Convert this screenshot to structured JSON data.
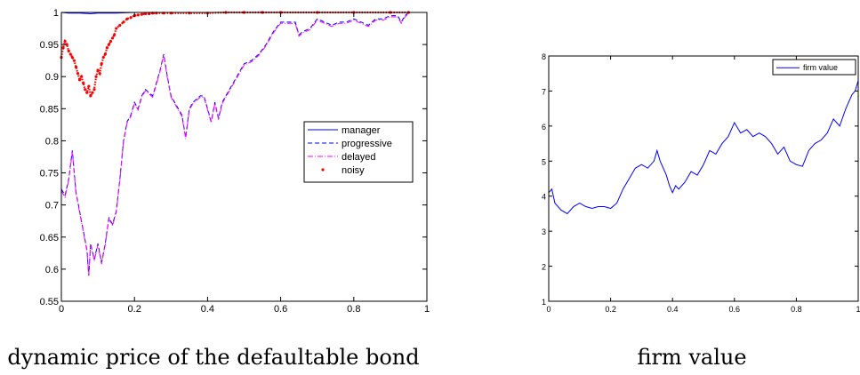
{
  "chart_data": [
    {
      "type": "line",
      "caption": "dynamic price of the defaultable bond",
      "xlim": [
        0,
        1
      ],
      "ylim": [
        0.55,
        1
      ],
      "xticks": [
        "0",
        "0.2",
        "0.4",
        "0.6",
        "0.8",
        "1"
      ],
      "yticks": [
        "0.55",
        "0.6",
        "0.65",
        "0.7",
        "0.75",
        "0.8",
        "0.85",
        "0.9",
        "0.95",
        "1"
      ],
      "legend_position": "right",
      "grid": false,
      "series": [
        {
          "name": "manager",
          "color": "#0000ff",
          "style": "solid",
          "x": [
            0,
            0.02,
            0.05,
            0.08,
            0.1,
            0.15,
            0.2,
            0.3,
            0.5,
            0.7,
            0.95
          ],
          "y": [
            1.0,
            0.999,
            0.999,
            0.998,
            0.999,
            0.999,
            1.0,
            1.0,
            1.0,
            1.0,
            1.0
          ]
        },
        {
          "name": "progressive",
          "color": "#0000ff",
          "style": "dashed",
          "x": [
            0,
            0.01,
            0.02,
            0.03,
            0.04,
            0.05,
            0.06,
            0.07,
            0.075,
            0.08,
            0.09,
            0.1,
            0.11,
            0.12,
            0.13,
            0.14,
            0.15,
            0.16,
            0.17,
            0.18,
            0.19,
            0.2,
            0.21,
            0.22,
            0.23,
            0.24,
            0.25,
            0.26,
            0.27,
            0.28,
            0.29,
            0.3,
            0.31,
            0.32,
            0.33,
            0.34,
            0.35,
            0.36,
            0.37,
            0.38,
            0.39,
            0.4,
            0.41,
            0.42,
            0.43,
            0.44,
            0.45,
            0.46,
            0.47,
            0.48,
            0.5,
            0.52,
            0.54,
            0.56,
            0.58,
            0.6,
            0.62,
            0.64,
            0.65,
            0.66,
            0.68,
            0.7,
            0.72,
            0.74,
            0.76,
            0.78,
            0.8,
            0.82,
            0.84,
            0.86,
            0.88,
            0.9,
            0.92,
            0.93,
            0.94,
            0.95
          ],
          "y": [
            0.725,
            0.715,
            0.74,
            0.785,
            0.72,
            0.69,
            0.66,
            0.63,
            0.59,
            0.64,
            0.615,
            0.64,
            0.61,
            0.64,
            0.68,
            0.67,
            0.69,
            0.74,
            0.8,
            0.83,
            0.84,
            0.86,
            0.85,
            0.87,
            0.88,
            0.875,
            0.87,
            0.89,
            0.91,
            0.935,
            0.9,
            0.87,
            0.86,
            0.85,
            0.84,
            0.805,
            0.85,
            0.86,
            0.865,
            0.87,
            0.87,
            0.85,
            0.83,
            0.86,
            0.835,
            0.86,
            0.87,
            0.88,
            0.89,
            0.9,
            0.92,
            0.925,
            0.935,
            0.95,
            0.97,
            0.985,
            0.985,
            0.985,
            0.965,
            0.97,
            0.975,
            0.99,
            0.985,
            0.98,
            0.985,
            0.985,
            0.99,
            0.985,
            0.98,
            0.99,
            0.99,
            0.995,
            0.995,
            0.985,
            0.995,
            1.0
          ]
        },
        {
          "name": "delayed",
          "color": "#ff00ff",
          "style": "dashdot",
          "x": [
            0,
            0.01,
            0.02,
            0.03,
            0.04,
            0.05,
            0.06,
            0.07,
            0.075,
            0.08,
            0.09,
            0.1,
            0.11,
            0.12,
            0.13,
            0.14,
            0.15,
            0.16,
            0.17,
            0.18,
            0.19,
            0.2,
            0.21,
            0.22,
            0.23,
            0.24,
            0.25,
            0.26,
            0.27,
            0.28,
            0.29,
            0.3,
            0.31,
            0.32,
            0.33,
            0.34,
            0.35,
            0.36,
            0.37,
            0.38,
            0.39,
            0.4,
            0.41,
            0.42,
            0.43,
            0.44,
            0.45,
            0.46,
            0.47,
            0.48,
            0.5,
            0.52,
            0.54,
            0.56,
            0.58,
            0.6,
            0.62,
            0.64,
            0.65,
            0.66,
            0.68,
            0.7,
            0.72,
            0.74,
            0.76,
            0.78,
            0.8,
            0.82,
            0.84,
            0.86,
            0.88,
            0.9,
            0.92,
            0.93,
            0.94,
            0.95
          ],
          "y": [
            0.722,
            0.712,
            0.738,
            0.782,
            0.718,
            0.688,
            0.658,
            0.628,
            0.592,
            0.638,
            0.613,
            0.638,
            0.608,
            0.638,
            0.678,
            0.668,
            0.688,
            0.738,
            0.798,
            0.828,
            0.838,
            0.858,
            0.848,
            0.868,
            0.878,
            0.873,
            0.868,
            0.888,
            0.908,
            0.933,
            0.898,
            0.868,
            0.858,
            0.848,
            0.838,
            0.803,
            0.848,
            0.858,
            0.863,
            0.868,
            0.868,
            0.848,
            0.828,
            0.858,
            0.833,
            0.858,
            0.868,
            0.878,
            0.888,
            0.898,
            0.918,
            0.923,
            0.933,
            0.948,
            0.968,
            0.983,
            0.983,
            0.983,
            0.963,
            0.968,
            0.973,
            0.988,
            0.983,
            0.978,
            0.983,
            0.983,
            0.988,
            0.983,
            0.978,
            0.988,
            0.988,
            0.993,
            0.993,
            0.983,
            0.993,
            0.998
          ]
        },
        {
          "name": "noisy",
          "color": "#ff0000",
          "style": "dots",
          "x": [
            0,
            0.005,
            0.01,
            0.015,
            0.02,
            0.025,
            0.03,
            0.035,
            0.04,
            0.045,
            0.05,
            0.055,
            0.06,
            0.065,
            0.07,
            0.075,
            0.08,
            0.085,
            0.09,
            0.095,
            0.1,
            0.105,
            0.11,
            0.115,
            0.12,
            0.125,
            0.13,
            0.135,
            0.14,
            0.145,
            0.15,
            0.16,
            0.17,
            0.18,
            0.19,
            0.2,
            0.21,
            0.22,
            0.23,
            0.24,
            0.25,
            0.26,
            0.28,
            0.3,
            0.35,
            0.4,
            0.45,
            0.5,
            0.55,
            0.6,
            0.7,
            0.8,
            0.9,
            0.95
          ],
          "y": [
            0.93,
            0.945,
            0.955,
            0.95,
            0.94,
            0.935,
            0.93,
            0.925,
            0.915,
            0.905,
            0.895,
            0.9,
            0.89,
            0.88,
            0.875,
            0.885,
            0.87,
            0.875,
            0.88,
            0.9,
            0.91,
            0.905,
            0.92,
            0.93,
            0.935,
            0.945,
            0.95,
            0.955,
            0.96,
            0.965,
            0.975,
            0.98,
            0.985,
            0.99,
            0.992,
            0.995,
            0.996,
            0.997,
            0.998,
            0.998,
            0.999,
            0.999,
            0.999,
            0.999,
            0.999,
            0.999,
            1.0,
            1.0,
            1.0,
            1.0,
            1.0,
            1.0,
            1.0,
            1.0
          ]
        }
      ]
    },
    {
      "type": "line",
      "caption": "firm value",
      "xlim": [
        0,
        1
      ],
      "ylim": [
        1,
        8
      ],
      "xticks": [
        "0",
        "0.2",
        "0.4",
        "0.6",
        "0.8",
        "1"
      ],
      "yticks": [
        "1",
        "2",
        "3",
        "4",
        "5",
        "6",
        "7",
        "8"
      ],
      "legend_position": "top-right",
      "grid": false,
      "series": [
        {
          "name": "firm value",
          "color": "#0000ff",
          "style": "solid",
          "x": [
            0,
            0.01,
            0.02,
            0.04,
            0.06,
            0.08,
            0.1,
            0.12,
            0.14,
            0.16,
            0.18,
            0.2,
            0.22,
            0.24,
            0.26,
            0.28,
            0.3,
            0.32,
            0.34,
            0.35,
            0.36,
            0.38,
            0.39,
            0.4,
            0.41,
            0.42,
            0.44,
            0.46,
            0.48,
            0.5,
            0.52,
            0.54,
            0.56,
            0.58,
            0.6,
            0.62,
            0.64,
            0.66,
            0.68,
            0.7,
            0.72,
            0.74,
            0.76,
            0.78,
            0.8,
            0.82,
            0.84,
            0.86,
            0.88,
            0.9,
            0.92,
            0.94,
            0.96,
            0.98,
            0.99,
            1.0
          ],
          "y": [
            4.1,
            4.2,
            3.8,
            3.6,
            3.5,
            3.7,
            3.8,
            3.7,
            3.65,
            3.7,
            3.7,
            3.65,
            3.8,
            4.2,
            4.5,
            4.8,
            4.9,
            4.8,
            5.0,
            5.3,
            5.0,
            4.6,
            4.3,
            4.1,
            4.3,
            4.2,
            4.4,
            4.7,
            4.6,
            4.9,
            5.3,
            5.2,
            5.5,
            5.7,
            6.1,
            5.8,
            5.9,
            5.7,
            5.8,
            5.7,
            5.5,
            5.2,
            5.4,
            5.0,
            4.9,
            4.85,
            5.3,
            5.5,
            5.6,
            5.8,
            6.2,
            6.0,
            6.5,
            6.9,
            7.0,
            7.3
          ]
        },
        {
          "name": "",
          "color": "#8b0000",
          "style": "solid",
          "x": [
            0,
            1.0
          ],
          "y": [
            1.0,
            1.0
          ]
        }
      ]
    }
  ]
}
